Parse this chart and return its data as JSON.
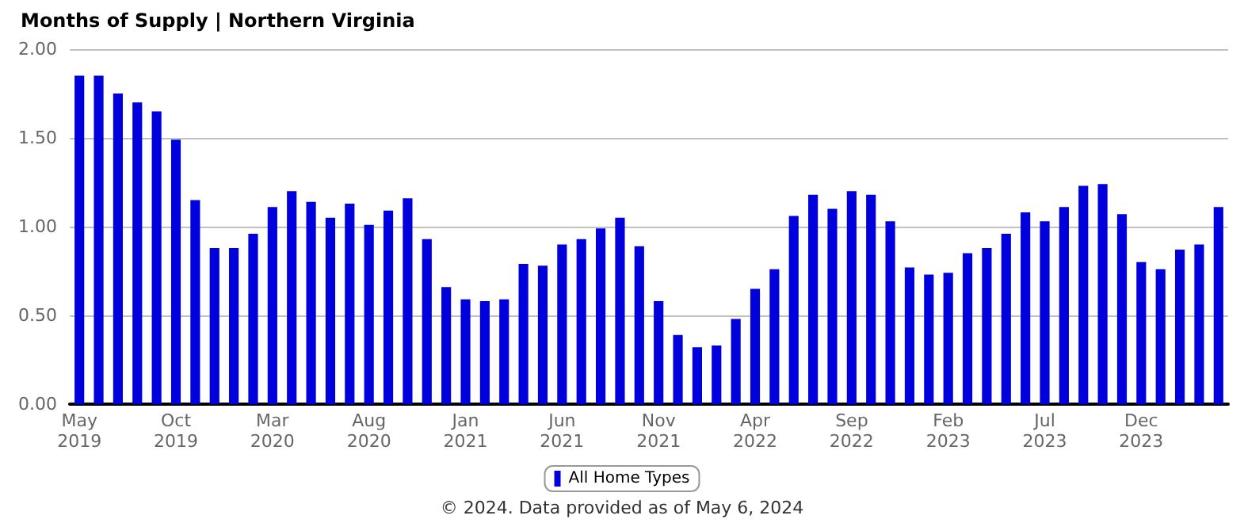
{
  "chart_data": {
    "type": "bar",
    "title": "Months of Supply | Northern Virginia",
    "categories": [
      "May\n2019",
      null,
      null,
      null,
      null,
      "Oct\n2019",
      null,
      null,
      null,
      null,
      "Mar\n2020",
      null,
      null,
      null,
      null,
      "Aug\n2020",
      null,
      null,
      null,
      null,
      "Jan\n2021",
      null,
      null,
      null,
      null,
      "Jun\n2021",
      null,
      null,
      null,
      null,
      "Nov\n2021",
      null,
      null,
      null,
      null,
      "Apr\n2022",
      null,
      null,
      null,
      null,
      "Sep\n2022",
      null,
      null,
      null,
      null,
      "Feb\n2023",
      null,
      null,
      null,
      null,
      "Jul\n2023",
      null,
      null,
      null,
      null,
      "Dec\n2023",
      null,
      null,
      null,
      null
    ],
    "series": [
      {
        "name": "All Home Types",
        "color": "#0000dd",
        "values": [
          1.85,
          1.85,
          1.75,
          1.7,
          1.65,
          1.49,
          1.15,
          0.88,
          0.88,
          0.96,
          1.11,
          1.2,
          1.14,
          1.05,
          1.13,
          1.01,
          1.09,
          1.16,
          0.93,
          0.66,
          0.59,
          0.58,
          0.59,
          0.79,
          0.78,
          0.9,
          0.93,
          0.99,
          1.05,
          0.89,
          0.58,
          0.39,
          0.32,
          0.33,
          0.48,
          0.65,
          0.76,
          1.06,
          1.18,
          1.1,
          1.2,
          1.18,
          1.03,
          0.77,
          0.73,
          0.74,
          0.85,
          0.88,
          0.96,
          1.08,
          1.03,
          1.11,
          1.23,
          1.24,
          1.07,
          0.8,
          0.76,
          0.87,
          0.9,
          1.11
        ]
      }
    ],
    "ylim": [
      0,
      2
    ],
    "yticks": [
      {
        "value": 0,
        "label": "0.00"
      },
      {
        "value": 0.5,
        "label": "0.50"
      },
      {
        "value": 1,
        "label": "1.00"
      },
      {
        "value": 1.5,
        "label": "1.50"
      },
      {
        "value": 2,
        "label": "2.00"
      }
    ],
    "grid": "y",
    "legend": "bottom",
    "annotations": [
      "© 2024. Data provided as of May 6, 2024"
    ]
  }
}
